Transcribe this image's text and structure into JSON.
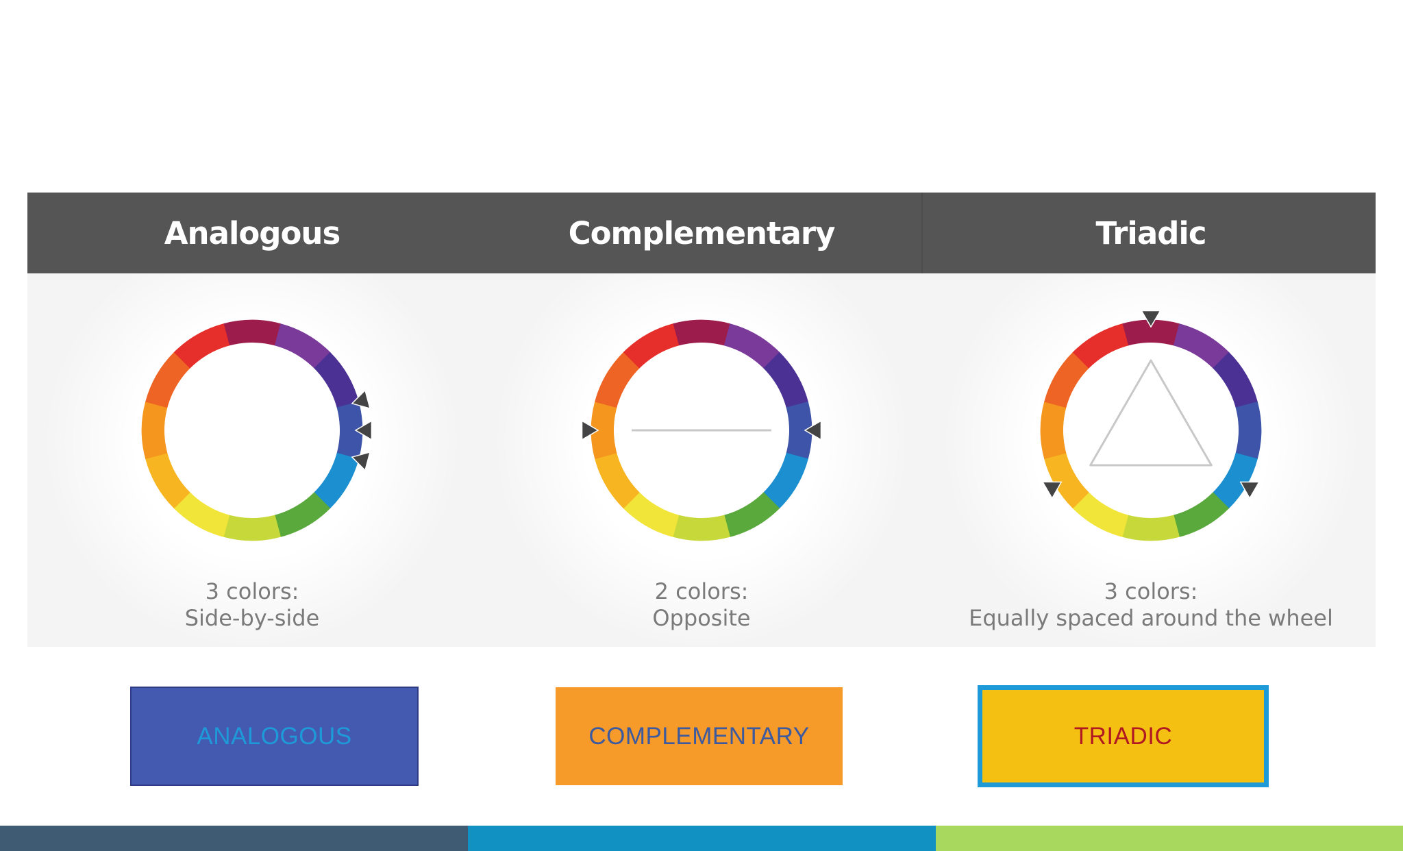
{
  "figure": {
    "panels": [
      {
        "id": "analogous",
        "title": "Analogous",
        "caption_line1": "3 colors:",
        "caption_line2": "Side-by-side",
        "marker_hues": [
          75,
          90,
          105
        ],
        "connector": "none"
      },
      {
        "id": "complementary",
        "title": "Complementary",
        "caption_line1": "2 colors:",
        "caption_line2": "Opposite",
        "marker_hues": [
          90,
          270
        ],
        "connector": "line"
      },
      {
        "id": "triadic",
        "title": "Triadic",
        "caption_line1": "3 colors:",
        "caption_line2": "Equally spaced around the wheel",
        "marker_hues": [
          0,
          120,
          240
        ],
        "connector": "triangle"
      }
    ],
    "wheel_colors": [
      "#9c1d4b",
      "#7a3a9a",
      "#4b3194",
      "#3d54a8",
      "#1b8fcf",
      "#5aa93c",
      "#c7d93a",
      "#f2e53a",
      "#f7b522",
      "#f5961f",
      "#ee6425",
      "#e62f2b"
    ],
    "marker_color": "#444444",
    "connector_color": "#c8c8c8"
  },
  "buttons": {
    "analogous": "ANALOGOUS",
    "complementary": "COMPLEMENTARY",
    "triadic": "TRIADIC"
  },
  "colors": {
    "header_bg": "#555555",
    "analogous_button": "#4459b0",
    "complementary_button": "#f69a2a",
    "triadic_button": "#f4c012",
    "triadic_border": "#1f9ad8",
    "bottom_bar": [
      "#3f5b73",
      "#1190c2",
      "#a9d85f"
    ]
  }
}
